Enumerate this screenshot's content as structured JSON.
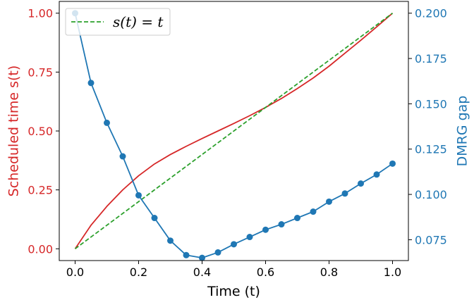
{
  "chart_data": {
    "type": "line",
    "xlabel": "Time (t)",
    "ylabel_left": "Scheduled time s(t)",
    "ylabel_right": "DMRG gap",
    "xlim": [
      -0.05,
      1.05
    ],
    "ylim_left": [
      -0.05,
      1.05
    ],
    "ylim_right": [
      0.0635,
      0.2065
    ],
    "x_ticks": [
      0.0,
      0.2,
      0.4,
      0.6,
      0.8,
      1.0
    ],
    "x_tick_labels": [
      "0.0",
      "0.2",
      "0.4",
      "0.6",
      "0.8",
      "1.0"
    ],
    "y_left_ticks": [
      0.0,
      0.25,
      0.5,
      0.75,
      1.0
    ],
    "y_left_tick_labels": [
      "0.00",
      "0.25",
      "0.50",
      "0.75",
      "1.00"
    ],
    "y_right_ticks": [
      0.075,
      0.1,
      0.125,
      0.15,
      0.175,
      0.2
    ],
    "y_right_tick_labels": [
      "0.075",
      "0.100",
      "0.125",
      "0.150",
      "0.175",
      "0.200"
    ],
    "legend": {
      "placement": "top-left",
      "entries": [
        "s(t) = t"
      ]
    },
    "grid": false,
    "colors": {
      "schedule": "#d62728",
      "reference": "#2ca02c",
      "gap": "#1f77b4"
    },
    "series": [
      {
        "axis": "left",
        "style": "solid",
        "color": "#d62728",
        "x": [
          0.0,
          0.05,
          0.1,
          0.15,
          0.2,
          0.25,
          0.3,
          0.35,
          0.4,
          0.45,
          0.5,
          0.55,
          0.6,
          0.65,
          0.7,
          0.75,
          0.8,
          0.85,
          0.9,
          0.95,
          1.0
        ],
        "values": [
          0.0,
          0.1,
          0.18,
          0.25,
          0.31,
          0.36,
          0.4,
          0.435,
          0.468,
          0.5,
          0.532,
          0.565,
          0.6,
          0.638,
          0.68,
          0.725,
          0.775,
          0.83,
          0.885,
          0.942,
          1.0
        ]
      },
      {
        "name": "s(t) = t",
        "axis": "left",
        "style": "dashed",
        "color": "#2ca02c",
        "x": [
          0.0,
          1.0
        ],
        "values": [
          0.0,
          1.0
        ]
      },
      {
        "axis": "right",
        "style": "solid-markers",
        "color": "#1f77b4",
        "x": [
          0.0,
          0.05,
          0.1,
          0.15,
          0.2,
          0.25,
          0.3,
          0.35,
          0.4,
          0.45,
          0.5,
          0.55,
          0.6,
          0.65,
          0.7,
          0.75,
          0.8,
          0.85,
          0.9,
          0.95,
          1.0
        ],
        "values": [
          0.2,
          0.1615,
          0.1395,
          0.121,
          0.0995,
          0.087,
          0.0745,
          0.0665,
          0.065,
          0.068,
          0.0725,
          0.0765,
          0.0805,
          0.0835,
          0.087,
          0.0905,
          0.096,
          0.1005,
          0.106,
          0.111,
          0.117
        ]
      }
    ]
  }
}
